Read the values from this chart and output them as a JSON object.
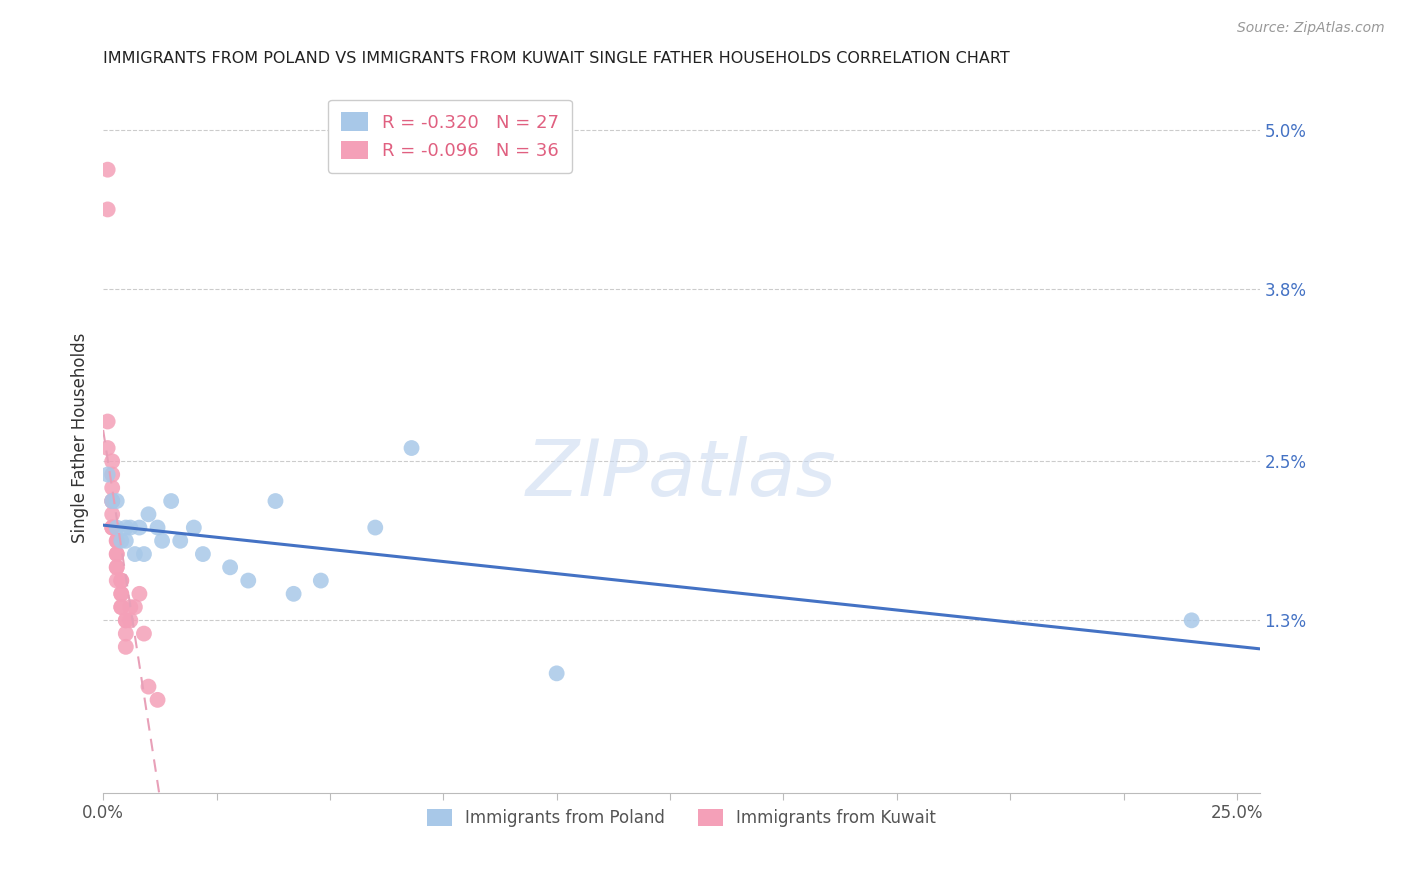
{
  "title": "IMMIGRANTS FROM POLAND VS IMMIGRANTS FROM KUWAIT SINGLE FATHER HOUSEHOLDS CORRELATION CHART",
  "source": "Source: ZipAtlas.com",
  "ylabel": "Single Father Households",
  "right_yticks": [
    0.05,
    0.038,
    0.025,
    0.013
  ],
  "right_ytick_labels": [
    "5.0%",
    "3.8%",
    "2.5%",
    "1.3%"
  ],
  "xlim": [
    0.0,
    0.255
  ],
  "ylim": [
    0.0,
    0.0535
  ],
  "legend_poland": "R = -0.320   N = 27",
  "legend_kuwait": "R = -0.096   N = 36",
  "poland_color": "#a8c8e8",
  "kuwait_color": "#f4a0b8",
  "poland_line_color": "#4472c4",
  "kuwait_line_color": "#e8a0b8",
  "poland_scatter": [
    [
      0.001,
      0.024
    ],
    [
      0.002,
      0.022
    ],
    [
      0.003,
      0.02
    ],
    [
      0.003,
      0.022
    ],
    [
      0.004,
      0.019
    ],
    [
      0.005,
      0.019
    ],
    [
      0.005,
      0.02
    ],
    [
      0.006,
      0.02
    ],
    [
      0.007,
      0.018
    ],
    [
      0.008,
      0.02
    ],
    [
      0.009,
      0.018
    ],
    [
      0.01,
      0.021
    ],
    [
      0.012,
      0.02
    ],
    [
      0.013,
      0.019
    ],
    [
      0.015,
      0.022
    ],
    [
      0.017,
      0.019
    ],
    [
      0.02,
      0.02
    ],
    [
      0.022,
      0.018
    ],
    [
      0.028,
      0.017
    ],
    [
      0.032,
      0.016
    ],
    [
      0.038,
      0.022
    ],
    [
      0.042,
      0.015
    ],
    [
      0.048,
      0.016
    ],
    [
      0.06,
      0.02
    ],
    [
      0.068,
      0.026
    ],
    [
      0.1,
      0.009
    ],
    [
      0.24,
      0.013
    ]
  ],
  "kuwait_scatter": [
    [
      0.001,
      0.047
    ],
    [
      0.001,
      0.044
    ],
    [
      0.001,
      0.028
    ],
    [
      0.001,
      0.026
    ],
    [
      0.002,
      0.025
    ],
    [
      0.002,
      0.024
    ],
    [
      0.002,
      0.023
    ],
    [
      0.002,
      0.022
    ],
    [
      0.002,
      0.022
    ],
    [
      0.002,
      0.021
    ],
    [
      0.002,
      0.02
    ],
    [
      0.002,
      0.02
    ],
    [
      0.003,
      0.019
    ],
    [
      0.003,
      0.019
    ],
    [
      0.003,
      0.018
    ],
    [
      0.003,
      0.018
    ],
    [
      0.003,
      0.017
    ],
    [
      0.003,
      0.017
    ],
    [
      0.003,
      0.016
    ],
    [
      0.004,
      0.016
    ],
    [
      0.004,
      0.016
    ],
    [
      0.004,
      0.015
    ],
    [
      0.004,
      0.015
    ],
    [
      0.004,
      0.014
    ],
    [
      0.004,
      0.014
    ],
    [
      0.005,
      0.013
    ],
    [
      0.005,
      0.013
    ],
    [
      0.005,
      0.012
    ],
    [
      0.005,
      0.011
    ],
    [
      0.006,
      0.013
    ],
    [
      0.006,
      0.014
    ],
    [
      0.007,
      0.014
    ],
    [
      0.008,
      0.015
    ],
    [
      0.009,
      0.012
    ],
    [
      0.01,
      0.008
    ],
    [
      0.012,
      0.007
    ]
  ],
  "watermark": "ZIPatlas",
  "legend_poland_label": "Immigrants from Poland",
  "legend_kuwait_label": "Immigrants from Kuwait",
  "poland_trendline_x": [
    0.0,
    0.255
  ],
  "kuwait_trendline_x": [
    0.0,
    0.085
  ]
}
